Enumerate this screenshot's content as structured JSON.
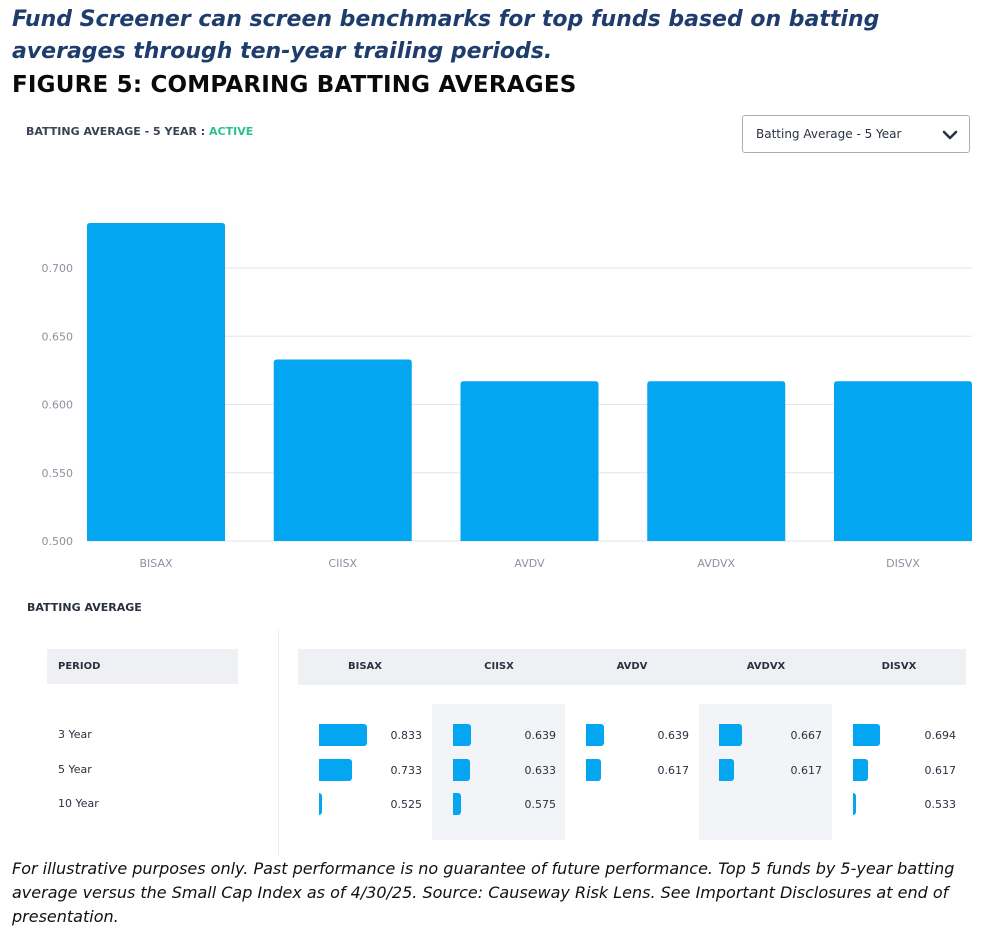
{
  "intro_text": "Fund Screener can screen benchmarks for top funds based on batting averages through ten-year trailing periods.",
  "figure_title": "FIGURE 5: COMPARING BATTING AVERAGES",
  "chart_header": {
    "label": "BATTING AVERAGE - 5 YEAR :",
    "status": "ACTIVE",
    "status_color": "#2ec08a"
  },
  "metric_select": {
    "value": "Batting Average - 5 Year",
    "icon": "chevron-down-icon"
  },
  "chart_data": {
    "type": "bar",
    "title": "",
    "xlabel": "",
    "ylabel": "",
    "categories": [
      "BISAX",
      "CIISX",
      "AVDV",
      "AVDVX",
      "DISVX"
    ],
    "values": [
      0.733,
      0.633,
      0.617,
      0.617,
      0.617
    ],
    "ylim": [
      0.5,
      0.75
    ],
    "yticks": [
      "0.500",
      "0.550",
      "0.600",
      "0.650",
      "0.700"
    ],
    "ytick_values": [
      0.5,
      0.55,
      0.6,
      0.65,
      0.7
    ],
    "grid": true,
    "bar_color": "#04a5f1"
  },
  "table": {
    "title": "BATTING AVERAGE",
    "period_header": "PERIOD",
    "columns": [
      "BISAX",
      "CIISX",
      "AVDV",
      "AVDVX",
      "DISVX"
    ],
    "rows": [
      {
        "period": "3 Year",
        "values": [
          "0.833",
          "0.639",
          "0.639",
          "0.667",
          "0.694"
        ]
      },
      {
        "period": "5 Year",
        "values": [
          "0.733",
          "0.633",
          "0.617",
          "0.617",
          "0.617"
        ]
      },
      {
        "period": "10 Year",
        "values": [
          "0.525",
          "0.575",
          "",
          "",
          "0.533"
        ]
      }
    ]
  },
  "footnote": "For illustrative purposes only. Past performance is no guarantee of future performance. Top 5 funds by 5-year batting average versus the Small Cap Index as of 4/30/25. Source: Causeway Risk Lens. See Important Disclosures at end of presentation."
}
